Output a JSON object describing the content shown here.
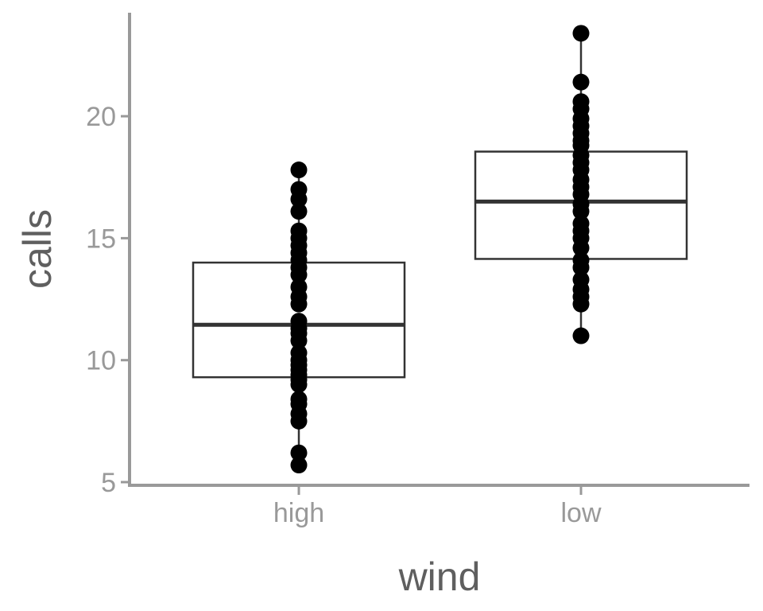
{
  "chart_data": {
    "type": "boxplot",
    "title": "",
    "xlabel": "wind",
    "ylabel": "calls",
    "categories": [
      "high",
      "low"
    ],
    "ylim": [
      5,
      24
    ],
    "yticks": [
      5,
      10,
      15,
      20
    ],
    "grid": false,
    "boxes": [
      {
        "category": "high",
        "q1": 9.3,
        "median": 11.45,
        "q3": 14.0,
        "whisker_low": 5.7,
        "whisker_high": 17.8
      },
      {
        "category": "low",
        "q1": 14.15,
        "median": 16.5,
        "q3": 18.55,
        "whisker_low": 11.0,
        "whisker_high": 23.4
      }
    ],
    "points": [
      {
        "category": "high",
        "values": [
          5.7,
          6.2,
          7.5,
          7.8,
          8.2,
          8.4,
          9.0,
          9.2,
          9.4,
          9.6,
          9.8,
          10.0,
          10.3,
          10.8,
          11.1,
          11.3,
          11.6,
          12.3,
          12.6,
          13.0,
          13.5,
          13.8,
          14.1,
          14.4,
          14.7,
          15.0,
          15.3,
          16.1,
          16.6,
          17.0,
          17.8
        ]
      },
      {
        "category": "low",
        "values": [
          11.0,
          12.3,
          12.6,
          12.9,
          13.3,
          13.8,
          14.1,
          14.6,
          15.0,
          15.3,
          15.6,
          16.1,
          16.4,
          16.8,
          17.1,
          17.4,
          17.8,
          18.1,
          18.4,
          18.8,
          19.0,
          19.3,
          19.6,
          19.9,
          20.3,
          20.6,
          21.4,
          23.4
        ]
      }
    ]
  }
}
